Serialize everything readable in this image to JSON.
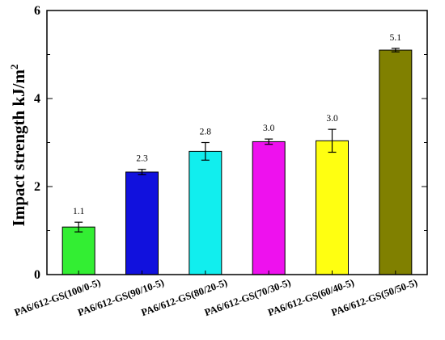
{
  "chart_data": {
    "type": "bar",
    "title": "",
    "xlabel": "",
    "ylabel": "Impact strength kJ/m",
    "ylabel_superscript": "2",
    "ylim": [
      0,
      6
    ],
    "yticks": [
      0,
      2,
      4,
      6
    ],
    "grid": false,
    "categories": [
      "PA6/612-GS(100/0-5)",
      "PA6/612-GS(90/10-5)",
      "PA6/612-GS(80/20-5)",
      "PA6/612-GS(70/30-5)",
      "PA6/612-GS(60/40-5)",
      "PA6/612-GS(50/50-5)"
    ],
    "values": [
      1.08,
      2.33,
      2.8,
      3.02,
      3.04,
      5.1
    ],
    "errors": [
      0.11,
      0.06,
      0.2,
      0.06,
      0.26,
      0.04
    ],
    "data_labels": [
      "1.1",
      "2.3",
      "2.8",
      "3.0",
      "3.0",
      "5.1"
    ],
    "colors": [
      "#33ee33",
      "#1111dd",
      "#11eeee",
      "#ee11ee",
      "#ffff11",
      "#808000"
    ]
  }
}
